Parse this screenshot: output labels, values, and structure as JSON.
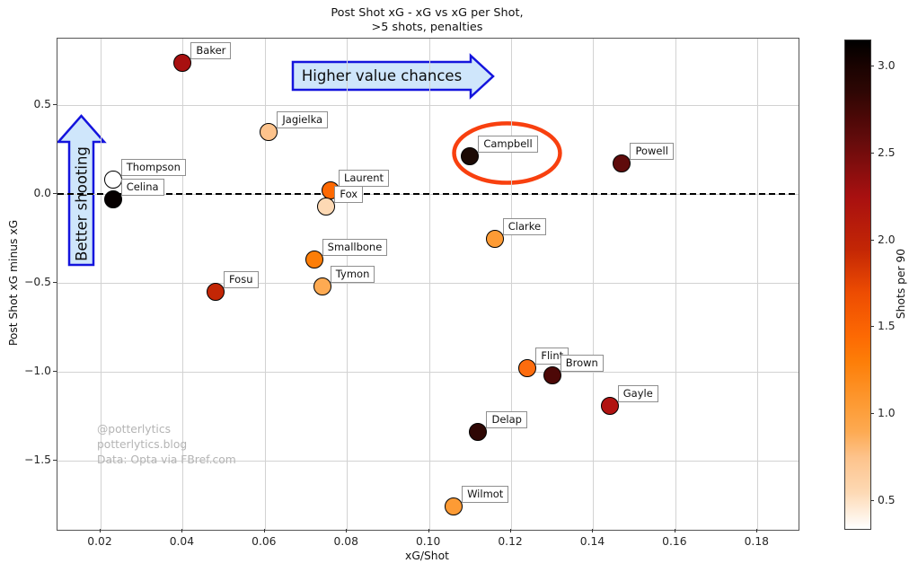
{
  "title": {
    "line1": "Post Shot xG - xG vs xG per Shot,",
    "line2": ">5 shots, penalties"
  },
  "annotations": {
    "higher_value_chances": "Higher value chances",
    "better_shooting": "Better shooting"
  },
  "watermark": {
    "line1": "@potterlytics",
    "line2": "potterlytics.blog",
    "line3": "Data: Opta via FBref.com"
  },
  "chart_data": {
    "type": "scatter",
    "title": "Post Shot xG - xG vs xG per Shot, >5 shots, penalties",
    "xlabel": "xG/Shot",
    "ylabel": "Post Shot xG minus xG",
    "xlim": [
      0.0095,
      0.19
    ],
    "ylim": [
      -1.889,
      0.874
    ],
    "grid": true,
    "x_ticks": [
      0.02,
      0.04,
      0.06,
      0.08,
      0.1,
      0.12,
      0.14,
      0.16,
      0.18
    ],
    "x_tick_labels": [
      "0.02",
      "0.04",
      "0.06",
      "0.08",
      "0.10",
      "0.12",
      "0.14",
      "0.16",
      "0.18"
    ],
    "y_ticks": [
      0.5,
      0.0,
      -0.5,
      -1.0,
      -1.5
    ],
    "y_tick_labels": [
      "0.5",
      "0.0",
      "−0.5",
      "−1.0",
      "−1.5"
    ],
    "zero_line": {
      "y": 0.0,
      "style": "dashed",
      "color": "#000000"
    },
    "points": [
      {
        "name": "Baker",
        "x": 0.04,
        "y": 0.74,
        "shots_per_90_est": 2.25,
        "color": "#a81010"
      },
      {
        "name": "Jagielka",
        "x": 0.061,
        "y": 0.35,
        "shots_per_90_est": 0.75,
        "color": "#fdc38c"
      },
      {
        "name": "Thompson",
        "x": 0.023,
        "y": 0.08,
        "shots_per_90_est": 0.35,
        "color": "#ffffff"
      },
      {
        "name": "Celina",
        "x": 0.023,
        "y": -0.03,
        "shots_per_90_est": 3.1,
        "color": "#060000"
      },
      {
        "name": "Laurent",
        "x": 0.076,
        "y": 0.02,
        "shots_per_90_est": 1.45,
        "color": "#fd6903"
      },
      {
        "name": "Fox",
        "x": 0.075,
        "y": -0.07,
        "shots_per_90_est": 0.55,
        "color": "#fdd9b4"
      },
      {
        "name": "Smallbone",
        "x": 0.072,
        "y": -0.37,
        "shots_per_90_est": 1.3,
        "color": "#fd7e08"
      },
      {
        "name": "Tymon",
        "x": 0.074,
        "y": -0.52,
        "shots_per_90_est": 0.9,
        "color": "#fdaa52"
      },
      {
        "name": "Fosu",
        "x": 0.048,
        "y": -0.55,
        "shots_per_90_est": 1.95,
        "color": "#c32605"
      },
      {
        "name": "Campbell",
        "x": 0.11,
        "y": 0.21,
        "shots_per_90_est": 3.0,
        "color": "#1c0a05"
      },
      {
        "name": "Powell",
        "x": 0.147,
        "y": 0.17,
        "shots_per_90_est": 2.6,
        "color": "#5f0b0b"
      },
      {
        "name": "Clarke",
        "x": 0.116,
        "y": -0.25,
        "shots_per_90_est": 1.05,
        "color": "#fd9b35"
      },
      {
        "name": "Flint",
        "x": 0.124,
        "y": -0.98,
        "shots_per_90_est": 1.4,
        "color": "#fd6c0e"
      },
      {
        "name": "Brown",
        "x": 0.13,
        "y": -1.02,
        "shots_per_90_est": 2.7,
        "color": "#4d0807"
      },
      {
        "name": "Gayle",
        "x": 0.144,
        "y": -1.19,
        "shots_per_90_est": 2.25,
        "color": "#b11311"
      },
      {
        "name": "Delap",
        "x": 0.112,
        "y": -1.34,
        "shots_per_90_est": 2.85,
        "color": "#2f0704"
      },
      {
        "name": "Wilmot",
        "x": 0.106,
        "y": -1.76,
        "shots_per_90_est": 1.05,
        "color": "#fd9b35"
      }
    ],
    "highlight_ellipse": {
      "around": "Campbell",
      "center_x": 0.119,
      "center_y": 0.23,
      "rx": 0.0129,
      "ry": 0.167,
      "color": "#f8400f"
    },
    "colorbar": {
      "label": "Shots per 90",
      "vmin": 0.34,
      "vmax": 3.15,
      "ticks": [
        0.5,
        1.0,
        1.5,
        2.0,
        2.5,
        3.0
      ],
      "tick_labels": [
        "0.5",
        "1.0",
        "1.5",
        "2.0",
        "2.5",
        "3.0"
      ],
      "gradient": [
        {
          "pos": 0.0,
          "color": "#ffffff"
        },
        {
          "pos": 0.075,
          "color": "#fdd9b4"
        },
        {
          "pos": 0.146,
          "color": "#fdc38c"
        },
        {
          "pos": 0.199,
          "color": "#fdaa52"
        },
        {
          "pos": 0.253,
          "color": "#fd9b35"
        },
        {
          "pos": 0.342,
          "color": "#fd7e08"
        },
        {
          "pos": 0.395,
          "color": "#fd6903"
        },
        {
          "pos": 0.484,
          "color": "#ed4c02"
        },
        {
          "pos": 0.573,
          "color": "#c32605"
        },
        {
          "pos": 0.68,
          "color": "#a81010"
        },
        {
          "pos": 0.804,
          "color": "#5f0b0b"
        },
        {
          "pos": 0.84,
          "color": "#4d0807"
        },
        {
          "pos": 0.893,
          "color": "#2f0704"
        },
        {
          "pos": 0.947,
          "color": "#1a0301"
        },
        {
          "pos": 1.0,
          "color": "#000000"
        }
      ],
      "arrow_colors": {
        "fill": "#cfe6fb",
        "stroke": "#1414dd"
      }
    }
  }
}
